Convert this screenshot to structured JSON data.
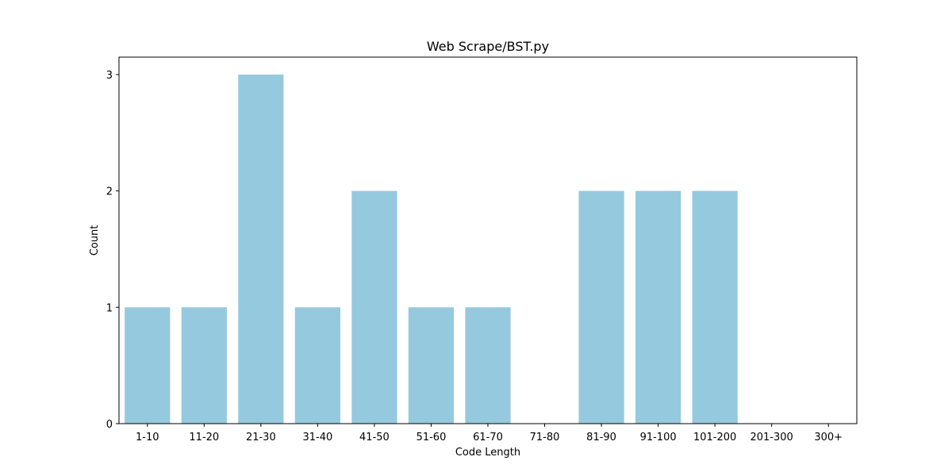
{
  "chart_data": {
    "type": "bar",
    "title": "Web Scrape/BST.py",
    "xlabel": "Code Length",
    "ylabel": "Count",
    "categories": [
      "1-10",
      "11-20",
      "21-30",
      "31-40",
      "41-50",
      "51-60",
      "61-70",
      "71-80",
      "81-90",
      "91-100",
      "101-200",
      "201-300",
      "300+"
    ],
    "values": [
      1,
      1,
      3,
      1,
      2,
      1,
      1,
      0,
      2,
      2,
      2,
      0,
      0
    ],
    "yticks": [
      0,
      1,
      2,
      3
    ],
    "ylim": [
      0,
      3.15
    ],
    "bar_color": "#95c9de",
    "grid": false,
    "legend": "none"
  }
}
